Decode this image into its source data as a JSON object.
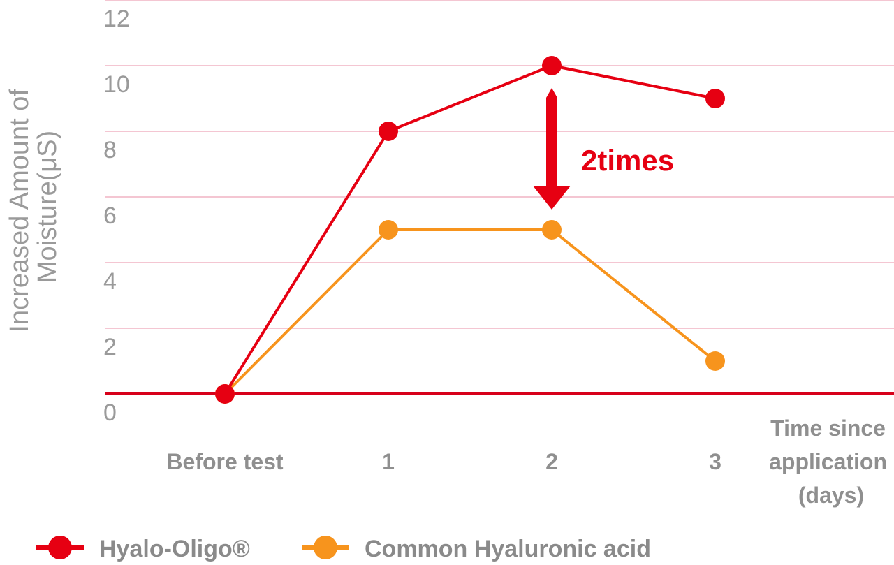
{
  "chart_data": {
    "type": "line",
    "categories": [
      "Before test",
      "1",
      "2",
      "3"
    ],
    "ylabel_lines": [
      "Increased Amount of",
      "Moisture(μS)"
    ],
    "xlabel_lines": [
      "Time since",
      "application",
      "(days)"
    ],
    "ylim": [
      0,
      12
    ],
    "yticks": [
      "0",
      "2",
      "4",
      "6",
      "8",
      "10",
      "12"
    ],
    "grid": true,
    "legend_position": "bottom-left",
    "series": [
      {
        "name": "Hyalo-Oligo®",
        "color": "#e60012",
        "values": [
          0,
          8,
          10,
          9
        ]
      },
      {
        "name": "Common Hyaluronic acid",
        "color": "#f7941d",
        "values": [
          0,
          5,
          5,
          1
        ]
      }
    ],
    "annotation": {
      "text": "2times",
      "color": "#e60012",
      "category": "2"
    },
    "gridline_color": "#f4c6d2",
    "baseline_color": "#d7001a"
  }
}
